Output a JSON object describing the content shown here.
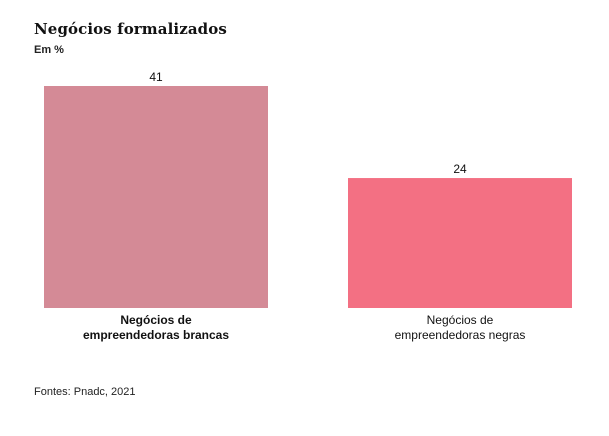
{
  "chart_data": {
    "type": "bar",
    "title": "Negócios formalizados",
    "subtitle": "Em %",
    "categories": [
      [
        "Negócios de",
        "empreendedoras brancas"
      ],
      [
        "Negócios de",
        "empreendedoras negras"
      ]
    ],
    "values": [
      41,
      24
    ],
    "data_labels": [
      "41",
      "24"
    ],
    "colors": [
      "#d48a96",
      "#f37083"
    ],
    "category_label_weight": [
      "bold",
      "normal"
    ],
    "ylim": [
      0,
      41
    ],
    "grid": false,
    "legend": "none"
  },
  "source": "Fontes: Pnadc, 2021"
}
